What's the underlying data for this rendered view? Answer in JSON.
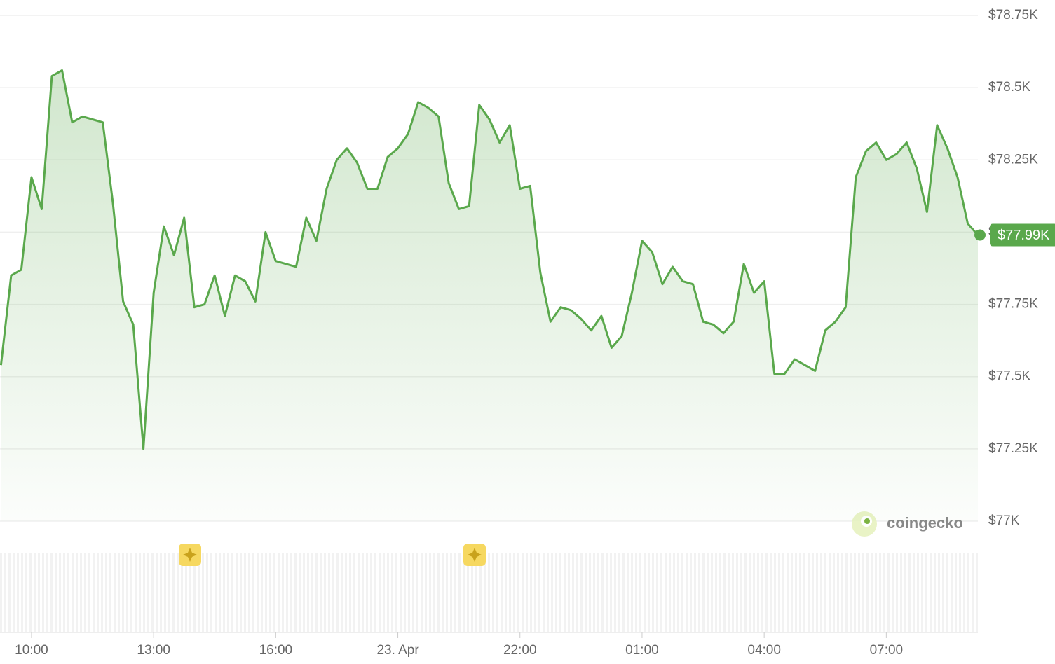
{
  "chart_data": {
    "type": "line",
    "categories": [
      null,
      null,
      null,
      "10:00",
      null,
      null,
      null,
      null,
      null,
      null,
      null,
      null,
      null,
      null,
      null,
      "13:00",
      null,
      null,
      null,
      null,
      null,
      null,
      null,
      null,
      null,
      null,
      null,
      "16:00",
      null,
      null,
      null,
      null,
      null,
      null,
      null,
      null,
      null,
      null,
      null,
      "23. Apr",
      null,
      null,
      null,
      null,
      null,
      null,
      null,
      null,
      null,
      null,
      null,
      "22:00",
      null,
      null,
      null,
      null,
      null,
      null,
      null,
      null,
      null,
      null,
      null,
      "01:00",
      null,
      null,
      null,
      null,
      null,
      null,
      null,
      null,
      null,
      null,
      null,
      "04:00",
      null,
      null,
      null,
      null,
      null,
      null,
      null,
      null,
      null,
      null,
      null,
      "07:00",
      null,
      null,
      null,
      null,
      null,
      null,
      null,
      null,
      null
    ],
    "series": [
      {
        "name": "Price",
        "color": "#5aa84c",
        "values": [
          77540,
          77850,
          77870,
          78190,
          78080,
          78540,
          78560,
          78380,
          78400,
          78390,
          78380,
          78100,
          77760,
          77680,
          77250,
          77790,
          78020,
          77920,
          78050,
          77740,
          77750,
          77850,
          77710,
          77850,
          77830,
          77760,
          78000,
          77900,
          77890,
          77880,
          78050,
          77970,
          78150,
          78250,
          78290,
          78240,
          78150,
          78150,
          78260,
          78290,
          78340,
          78450,
          78430,
          78400,
          78170,
          78080,
          78090,
          78440,
          78390,
          78310,
          78370,
          78150,
          78160,
          77860,
          77690,
          77740,
          77730,
          77700,
          77660,
          77710,
          77600,
          77640,
          77790,
          77970,
          77930,
          77820,
          77880,
          77830,
          77820,
          77690,
          77680,
          77650,
          77690,
          77890,
          77790,
          77830,
          77510,
          77510,
          77560,
          77540,
          77520,
          77660,
          77690,
          77740,
          78190,
          78280,
          78310,
          78250,
          78270,
          78310,
          78220,
          78070,
          78370,
          78290,
          78190,
          78030,
          77990
        ]
      }
    ],
    "ylim": [
      77000,
      78750
    ],
    "yticks": [
      {
        "value": 77000,
        "label": "$77K"
      },
      {
        "value": 77250,
        "label": "$77.25K"
      },
      {
        "value": 77500,
        "label": "$77.5K"
      },
      {
        "value": 77750,
        "label": "$77.75K"
      },
      {
        "value": 78000,
        "label": "$78K"
      },
      {
        "value": 78250,
        "label": "$78.25K"
      },
      {
        "value": 78500,
        "label": "$78.5K"
      },
      {
        "value": 78750,
        "label": "$78.75K"
      }
    ],
    "grid": true,
    "last_price_label": "$77.99K",
    "watermark": "coingecko"
  }
}
